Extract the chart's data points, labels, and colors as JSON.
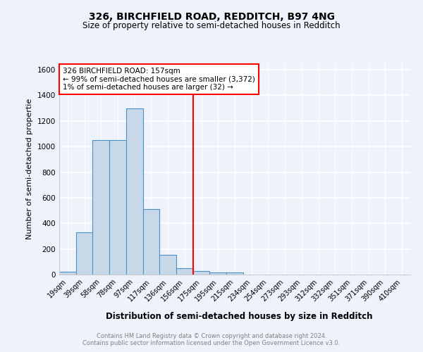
{
  "title_line1": "326, BIRCHFIELD ROAD, REDDITCH, B97 4NG",
  "title_line2": "Size of property relative to semi-detached houses in Redditch",
  "xlabel": "Distribution of semi-detached houses by size in Redditch",
  "ylabel": "Number of semi-detached propertie",
  "footnote1": "Contains HM Land Registry data © Crown copyright and database right 2024.",
  "footnote2": "Contains public sector information licensed under the Open Government Licence v3.0.",
  "bar_labels": [
    "19sqm",
    "39sqm",
    "58sqm",
    "78sqm",
    "97sqm",
    "117sqm",
    "136sqm",
    "156sqm",
    "175sqm",
    "195sqm",
    "215sqm",
    "234sqm",
    "254sqm",
    "273sqm",
    "293sqm",
    "312sqm",
    "332sqm",
    "351sqm",
    "371sqm",
    "390sqm",
    "410sqm"
  ],
  "bar_values": [
    20,
    330,
    1050,
    1050,
    1300,
    510,
    155,
    50,
    25,
    15,
    15,
    0,
    0,
    0,
    0,
    0,
    0,
    0,
    0,
    0,
    0
  ],
  "bar_color": "#c8d8e8",
  "bar_edge_color": "#4a90c8",
  "vline_index": 7,
  "vline_color": "red",
  "annotation_line1": "326 BIRCHFIELD ROAD: 157sqm",
  "annotation_line2": "← 99% of semi-detached houses are smaller (3,372)",
  "annotation_line3": "1% of semi-detached houses are larger (32) →",
  "annotation_box_color": "white",
  "annotation_box_edge_color": "red",
  "ylim": [
    0,
    1650
  ],
  "yticks": [
    0,
    200,
    400,
    600,
    800,
    1000,
    1200,
    1400,
    1600
  ],
  "bg_color": "#eef2fa",
  "grid_color": "white",
  "title_fontsize": 10,
  "subtitle_fontsize": 8.5,
  "ylabel_fontsize": 8,
  "xlabel_fontsize": 8.5,
  "tick_fontsize": 7,
  "footnote_fontsize": 6
}
